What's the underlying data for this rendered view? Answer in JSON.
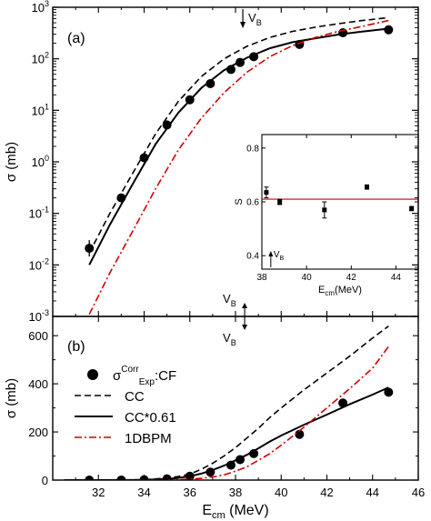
{
  "chart_data": [
    {
      "panel": "(a)",
      "type": "line",
      "panel_label": "(a)",
      "ylabel": "σ (mb)",
      "yscale": "log",
      "xlim": [
        30,
        46
      ],
      "ylim": [
        0.001,
        1000
      ],
      "y_ticks": [
        {
          "v": 0.001,
          "base": "10",
          "exp": "-3"
        },
        {
          "v": 0.01,
          "base": "10",
          "exp": "-2"
        },
        {
          "v": 0.1,
          "base": "10",
          "exp": "-1"
        },
        {
          "v": 1,
          "base": "10",
          "exp": "0"
        },
        {
          "v": 10,
          "base": "10",
          "exp": "1"
        },
        {
          "v": 100,
          "base": "10",
          "exp": "2"
        },
        {
          "v": 1000,
          "base": "10",
          "exp": "3"
        }
      ],
      "vb_annotation": {
        "label": "V",
        "sub": "B",
        "x": 38.4
      },
      "series": [
        {
          "key": "exp",
          "style": "circle",
          "points": [
            [
              31.6,
              0.021
            ],
            [
              33.0,
              0.2
            ],
            [
              34.0,
              1.2
            ],
            [
              35.0,
              5.2
            ],
            [
              36.0,
              16
            ],
            [
              36.9,
              33
            ],
            [
              37.8,
              62
            ],
            [
              38.2,
              85
            ],
            [
              38.8,
              110
            ],
            [
              40.8,
              190
            ],
            [
              42.7,
              320
            ],
            [
              44.7,
              365
            ]
          ]
        },
        {
          "key": "cc",
          "style": "dash",
          "color": "#000000",
          "points": [
            [
              31.6,
              0.017
            ],
            [
              32.5,
              0.1
            ],
            [
              33.5,
              0.6
            ],
            [
              34.5,
              3.5
            ],
            [
              35.5,
              15
            ],
            [
              36.5,
              45
            ],
            [
              37.5,
              100
            ],
            [
              38.5,
              175
            ],
            [
              39.5,
              260
            ],
            [
              40.5,
              340
            ],
            [
              41.5,
              410
            ],
            [
              42.5,
              480
            ],
            [
              43.5,
              550
            ],
            [
              44.7,
              630
            ]
          ]
        },
        {
          "key": "cc061",
          "style": "solid",
          "color": "#000000",
          "points": [
            [
              31.6,
              0.01
            ],
            [
              32.5,
              0.06
            ],
            [
              33.5,
              0.37
            ],
            [
              34.5,
              2.2
            ],
            [
              35.5,
              9
            ],
            [
              36.5,
              27
            ],
            [
              37.5,
              60
            ],
            [
              38.5,
              105
            ],
            [
              39.5,
              160
            ],
            [
              40.5,
              210
            ],
            [
              41.5,
              250
            ],
            [
              42.5,
              295
            ],
            [
              43.5,
              335
            ],
            [
              44.7,
              385
            ]
          ]
        },
        {
          "key": "bpm",
          "style": "dashdot",
          "color": "#d40000",
          "points": [
            [
              31.6,
              0.0011
            ],
            [
              32.5,
              0.007
            ],
            [
              33.5,
              0.045
            ],
            [
              34.5,
              0.3
            ],
            [
              35.5,
              1.7
            ],
            [
              36.5,
              7
            ],
            [
              37.5,
              22
            ],
            [
              38.5,
              55
            ],
            [
              39.5,
              110
            ],
            [
              40.5,
              180
            ],
            [
              41.5,
              260
            ],
            [
              42.5,
              340
            ],
            [
              43.5,
              420
            ],
            [
              44.7,
              555
            ]
          ]
        }
      ]
    },
    {
      "panel": "inset",
      "type": "scatter",
      "ylabel": "S",
      "xlabel": {
        "main": "E",
        "sub": "cm",
        "rest": "(MeV)"
      },
      "xlim": [
        38,
        45
      ],
      "ylim": [
        0.35,
        0.85
      ],
      "x_ticks": [
        38,
        40,
        42,
        44
      ],
      "y_ticks": [
        "0.4",
        "0.6",
        "0.8"
      ],
      "vb_annotation": {
        "label": "V",
        "sub": "B",
        "x": 38.4
      },
      "reference_line": {
        "value": 0.61,
        "color": "#d40000"
      },
      "points": [
        {
          "x": 38.2,
          "y": 0.635,
          "err": 0.02
        },
        {
          "x": 38.8,
          "y": 0.6,
          "err": 0.01
        },
        {
          "x": 40.8,
          "y": 0.57,
          "err": 0.03
        },
        {
          "x": 42.7,
          "y": 0.655,
          "err": 0.008
        },
        {
          "x": 44.7,
          "y": 0.575,
          "err": 0.008
        }
      ]
    },
    {
      "panel": "(b)",
      "type": "line",
      "panel_label": "(b)",
      "ylabel": "σ (mb)",
      "xlabel": {
        "main": "E",
        "sub": "cm",
        "rest": " (MeV)"
      },
      "xlim": [
        30,
        46
      ],
      "ylim": [
        0,
        680
      ],
      "x_ticks": [
        32,
        34,
        36,
        38,
        40,
        42,
        44,
        46
      ],
      "y_ticks": [
        0,
        200,
        400,
        600
      ],
      "vb_annotation": {
        "label": "V",
        "sub": "B",
        "x": 38.4
      },
      "legend": {
        "position": "left",
        "entries": [
          {
            "key": "exp",
            "main": "σ",
            "sup": "Corr",
            "sub": "Exp",
            "rest": ":CF"
          },
          {
            "key": "cc",
            "label": "CC"
          },
          {
            "key": "cc061",
            "label": "CC*0.61"
          },
          {
            "key": "bpm",
            "label": "1DBPM"
          }
        ]
      },
      "series": [
        {
          "key": "exp",
          "style": "circle",
          "points": [
            [
              31.6,
              0
            ],
            [
              33.0,
              0.2
            ],
            [
              34.0,
              1.2
            ],
            [
              35.0,
              5
            ],
            [
              36.0,
              16
            ],
            [
              36.9,
              33
            ],
            [
              37.8,
              62
            ],
            [
              38.2,
              85
            ],
            [
              38.8,
              110
            ],
            [
              40.8,
              190
            ],
            [
              42.7,
              320
            ],
            [
              44.7,
              365
            ]
          ]
        },
        {
          "key": "cc",
          "style": "dash",
          "color": "#000000",
          "points": [
            [
              30.5,
              0
            ],
            [
              32,
              0.1
            ],
            [
              33,
              0.3
            ],
            [
              34,
              2
            ],
            [
              35,
              8
            ],
            [
              35.5,
              15
            ],
            [
              36,
              25
            ],
            [
              36.5,
              45
            ],
            [
              37,
              70
            ],
            [
              37.5,
              100
            ],
            [
              38,
              135
            ],
            [
              38.5,
              175
            ],
            [
              39,
              215
            ],
            [
              39.5,
              260
            ],
            [
              40,
              300
            ],
            [
              41,
              375
            ],
            [
              42,
              445
            ],
            [
              43,
              515
            ],
            [
              44,
              590
            ],
            [
              44.7,
              640
            ]
          ]
        },
        {
          "key": "cc061",
          "style": "solid",
          "color": "#000000",
          "points": [
            [
              30.5,
              0
            ],
            [
              32,
              0.06
            ],
            [
              33,
              0.2
            ],
            [
              34,
              1.2
            ],
            [
              35,
              5
            ],
            [
              35.5,
              9
            ],
            [
              36,
              16
            ],
            [
              36.5,
              27
            ],
            [
              37,
              42
            ],
            [
              37.5,
              60
            ],
            [
              38,
              82
            ],
            [
              38.5,
              105
            ],
            [
              39,
              132
            ],
            [
              39.5,
              160
            ],
            [
              40,
              185
            ],
            [
              41,
              230
            ],
            [
              42,
              272
            ],
            [
              43,
              315
            ],
            [
              44,
              355
            ],
            [
              44.7,
              385
            ]
          ]
        },
        {
          "key": "bpm",
          "style": "dashdot",
          "color": "#d40000",
          "points": [
            [
              30.5,
              0
            ],
            [
              33,
              0
            ],
            [
              34,
              0.2
            ],
            [
              35,
              1
            ],
            [
              35.5,
              1.7
            ],
            [
              36,
              4
            ],
            [
              36.5,
              7
            ],
            [
              37,
              13
            ],
            [
              37.5,
              22
            ],
            [
              38,
              37
            ],
            [
              38.5,
              55
            ],
            [
              39,
              82
            ],
            [
              39.5,
              110
            ],
            [
              40,
              145
            ],
            [
              41,
              220
            ],
            [
              42,
              300
            ],
            [
              43,
              380
            ],
            [
              44,
              465
            ],
            [
              44.7,
              555
            ]
          ]
        }
      ]
    }
  ]
}
